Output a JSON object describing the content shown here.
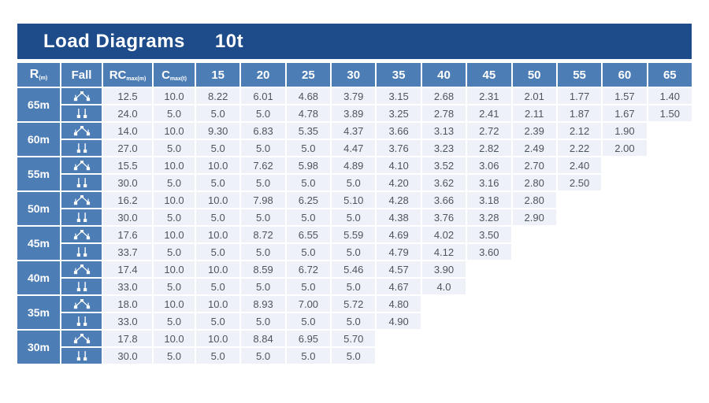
{
  "title": {
    "text": "Load Diagrams",
    "capacity": "10t"
  },
  "colors": {
    "title_bar": "#1e4c8a",
    "header_cell": "#4d7db5",
    "data_cell": "#eef1f8",
    "data_text": "#4e545e",
    "header_text": "#ffffff",
    "background": "#ffffff"
  },
  "chart_data": {
    "type": "table",
    "title": "Load Diagrams 10t",
    "column_headers": {
      "radius_main": "R",
      "radius_sub": "(m)",
      "fall": "Fall",
      "rc_main": "RC",
      "rc_sub": "max(m)",
      "c_main": "C",
      "c_sub": "max(t)",
      "jib_radii": [
        "15",
        "20",
        "25",
        "30",
        "35",
        "40",
        "45",
        "50",
        "55",
        "60",
        "65"
      ]
    },
    "groups": [
      {
        "radius": "65m",
        "rows": [
          {
            "fall": "four-fall",
            "rc": "12.5",
            "c": "10.0",
            "values": [
              "8.22",
              "6.01",
              "4.68",
              "3.79",
              "3.15",
              "2.68",
              "2.31",
              "2.01",
              "1.77",
              "1.57",
              "1.40"
            ]
          },
          {
            "fall": "two-fall",
            "rc": "24.0",
            "c": "5.0",
            "values": [
              "5.0",
              "5.0",
              "4.78",
              "3.89",
              "3.25",
              "2.78",
              "2.41",
              "2.11",
              "1.87",
              "1.67",
              "1.50"
            ]
          }
        ]
      },
      {
        "radius": "60m",
        "rows": [
          {
            "fall": "four-fall",
            "rc": "14.0",
            "c": "10.0",
            "values": [
              "9.30",
              "6.83",
              "5.35",
              "4.37",
              "3.66",
              "3.13",
              "2.72",
              "2.39",
              "2.12",
              "1.90",
              ""
            ]
          },
          {
            "fall": "two-fall",
            "rc": "27.0",
            "c": "5.0",
            "values": [
              "5.0",
              "5.0",
              "5.0",
              "4.47",
              "3.76",
              "3.23",
              "2.82",
              "2.49",
              "2.22",
              "2.00",
              ""
            ]
          }
        ]
      },
      {
        "radius": "55m",
        "rows": [
          {
            "fall": "four-fall",
            "rc": "15.5",
            "c": "10.0",
            "values": [
              "10.0",
              "7.62",
              "5.98",
              "4.89",
              "4.10",
              "3.52",
              "3.06",
              "2.70",
              "2.40",
              "",
              ""
            ]
          },
          {
            "fall": "two-fall",
            "rc": "30.0",
            "c": "5.0",
            "values": [
              "5.0",
              "5.0",
              "5.0",
              "5.0",
              "4.20",
              "3.62",
              "3.16",
              "2.80",
              "2.50",
              "",
              ""
            ]
          }
        ]
      },
      {
        "radius": "50m",
        "rows": [
          {
            "fall": "four-fall",
            "rc": "16.2",
            "c": "10.0",
            "values": [
              "10.0",
              "7.98",
              "6.25",
              "5.10",
              "4.28",
              "3.66",
              "3.18",
              "2.80",
              "",
              "",
              ""
            ]
          },
          {
            "fall": "two-fall",
            "rc": "30.0",
            "c": "5.0",
            "values": [
              "5.0",
              "5.0",
              "5.0",
              "5.0",
              "4.38",
              "3.76",
              "3.28",
              "2.90",
              "",
              "",
              ""
            ]
          }
        ]
      },
      {
        "radius": "45m",
        "rows": [
          {
            "fall": "four-fall",
            "rc": "17.6",
            "c": "10.0",
            "values": [
              "10.0",
              "8.72",
              "6.55",
              "5.59",
              "4.69",
              "4.02",
              "3.50",
              "",
              "",
              "",
              ""
            ]
          },
          {
            "fall": "two-fall",
            "rc": "33.7",
            "c": "5.0",
            "values": [
              "5.0",
              "5.0",
              "5.0",
              "5.0",
              "4.79",
              "4.12",
              "3.60",
              "",
              "",
              "",
              ""
            ]
          }
        ]
      },
      {
        "radius": "40m",
        "rows": [
          {
            "fall": "four-fall",
            "rc": "17.4",
            "c": "10.0",
            "values": [
              "10.0",
              "8.59",
              "6.72",
              "5.46",
              "4.57",
              "3.90",
              "",
              "",
              "",
              "",
              ""
            ]
          },
          {
            "fall": "two-fall",
            "rc": "33.0",
            "c": "5.0",
            "values": [
              "5.0",
              "5.0",
              "5.0",
              "5.0",
              "4.67",
              "4.0",
              "",
              "",
              "",
              "",
              ""
            ]
          }
        ]
      },
      {
        "radius": "35m",
        "rows": [
          {
            "fall": "four-fall",
            "rc": "18.0",
            "c": "10.0",
            "values": [
              "10.0",
              "8.93",
              "7.00",
              "5.72",
              "4.80",
              "",
              "",
              "",
              "",
              "",
              ""
            ]
          },
          {
            "fall": "two-fall",
            "rc": "33.0",
            "c": "5.0",
            "values": [
              "5.0",
              "5.0",
              "5.0",
              "5.0",
              "4.90",
              "",
              "",
              "",
              "",
              "",
              ""
            ]
          }
        ]
      },
      {
        "radius": "30m",
        "rows": [
          {
            "fall": "four-fall",
            "rc": "17.8",
            "c": "10.0",
            "values": [
              "10.0",
              "8.84",
              "6.95",
              "5.70",
              "",
              "",
              "",
              "",
              "",
              "",
              ""
            ]
          },
          {
            "fall": "two-fall",
            "rc": "30.0",
            "c": "5.0",
            "values": [
              "5.0",
              "5.0",
              "5.0",
              "5.0",
              "",
              "",
              "",
              "",
              "",
              "",
              ""
            ]
          }
        ]
      }
    ]
  }
}
